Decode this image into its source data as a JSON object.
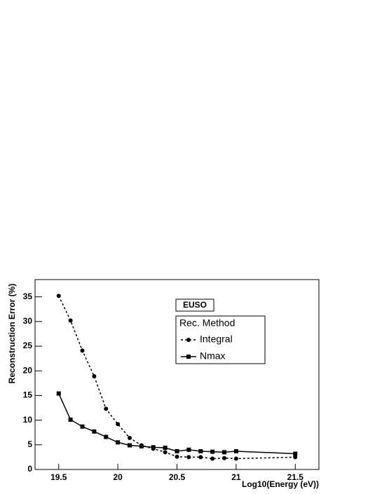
{
  "chart_data": {
    "type": "line",
    "x_label": "Log10(Energy (eV))",
    "y_label": "Reconstruction Error (%)",
    "annotation": "EUSO",
    "legend_title": "Rec. Method",
    "x": [
      19.5,
      19.6,
      19.7,
      19.8,
      19.9,
      20.0,
      20.1,
      20.2,
      20.3,
      20.4,
      20.5,
      20.6,
      20.7,
      20.8,
      20.9,
      21.0,
      21.5
    ],
    "series": [
      {
        "name": "Integral",
        "color": "#000000",
        "dash": true,
        "marker": "circle",
        "values": [
          35.2,
          30.2,
          24.1,
          18.9,
          12.3,
          9.2,
          6.4,
          4.9,
          4.2,
          3.5,
          2.6,
          2.5,
          2.5,
          2.2,
          2.3,
          2.2,
          2.5
        ]
      },
      {
        "name": "Nmax",
        "color": "#000000",
        "dash": false,
        "marker": "square",
        "values": [
          15.4,
          10.1,
          8.7,
          7.7,
          6.6,
          5.5,
          4.9,
          4.7,
          4.5,
          4.4,
          3.7,
          4.0,
          3.7,
          3.6,
          3.5,
          3.7,
          3.2
        ]
      }
    ],
    "xlim": [
      19.3,
      21.7
    ],
    "xticks": [
      19.5,
      20,
      20.5,
      21,
      21.5
    ],
    "ylim": [
      0,
      38.5
    ],
    "yticks": [
      0,
      5,
      10,
      15,
      20,
      25,
      30,
      35
    ]
  }
}
